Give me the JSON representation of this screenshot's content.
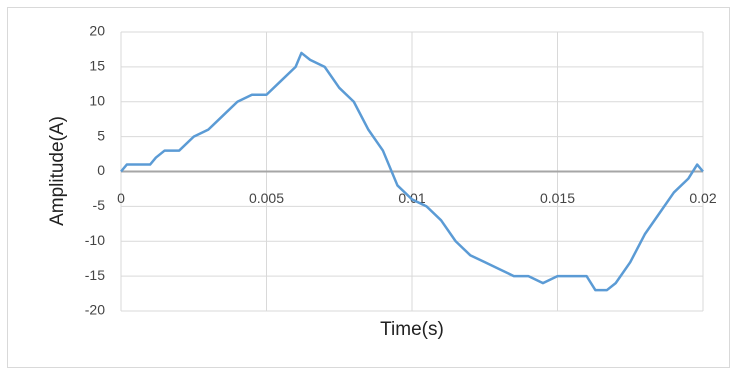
{
  "chart_data": {
    "type": "line",
    "xlabel": "Time(s)",
    "ylabel": "Amplitude(A)",
    "x": [
      0,
      0.0002,
      0.001,
      0.0012,
      0.0015,
      0.002,
      0.0025,
      0.003,
      0.0035,
      0.004,
      0.0045,
      0.005,
      0.0055,
      0.006,
      0.0062,
      0.0065,
      0.007,
      0.0075,
      0.008,
      0.0085,
      0.009,
      0.0095,
      0.01,
      0.0105,
      0.011,
      0.0115,
      0.012,
      0.0125,
      0.013,
      0.0135,
      0.014,
      0.0145,
      0.015,
      0.0155,
      0.016,
      0.0163,
      0.0167,
      0.017,
      0.0175,
      0.018,
      0.0185,
      0.019,
      0.0195,
      0.0198,
      0.02
    ],
    "series": [
      {
        "color": "#5b9bd5",
        "values": [
          0,
          1,
          1,
          2,
          3,
          3,
          5,
          6,
          8,
          10,
          11,
          11,
          13,
          15,
          17,
          16,
          15,
          12,
          10,
          6,
          3,
          -2,
          -4,
          -5,
          -7,
          -10,
          -12,
          -13,
          -14,
          -15,
          -15,
          -16,
          -15,
          -15,
          -15,
          -17,
          -17,
          -16,
          -13,
          -9,
          -6,
          -3,
          -1,
          1,
          0
        ]
      }
    ],
    "xlim": [
      0,
      0.02
    ],
    "xticks": [
      0,
      0.005,
      0.01,
      0.015,
      0.02
    ],
    "ylim": [
      -20,
      20
    ],
    "yticks": [
      -20,
      -15,
      -10,
      -5,
      0,
      5,
      10,
      15,
      20
    ],
    "grid": true
  }
}
